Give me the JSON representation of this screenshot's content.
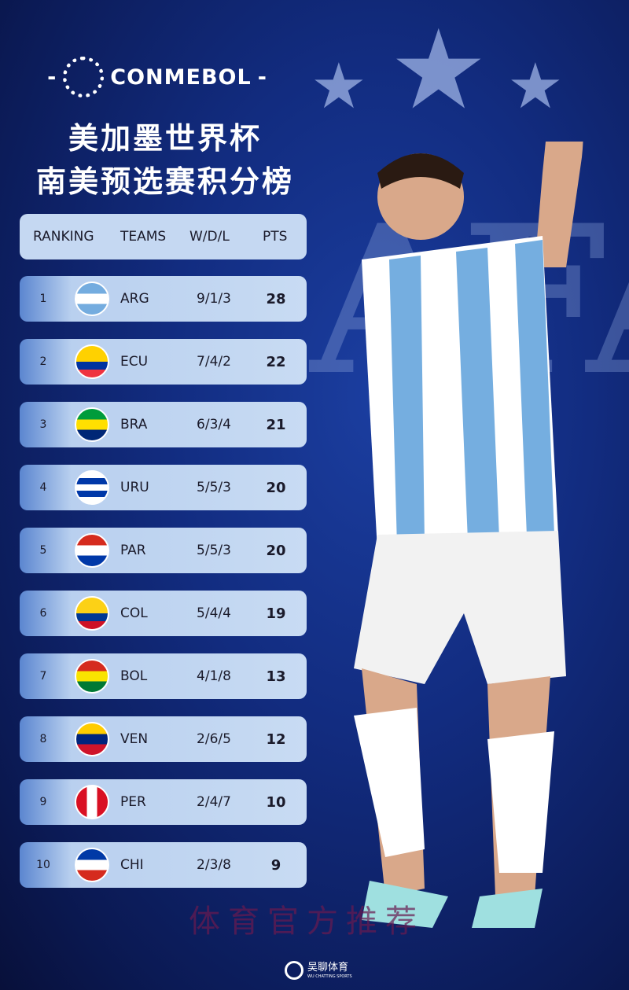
{
  "header": {
    "logo_text": "CONMEBOL",
    "title_line1": "美加墨世界杯",
    "title_line2": "南美预选赛积分榜"
  },
  "table": {
    "columns": [
      "RANKING",
      "TEAMS",
      "W/D/L",
      "PTS"
    ],
    "rows": [
      {
        "rank": "1",
        "team": "ARG",
        "wdl": "9/1/3",
        "pts": "28",
        "flag": [
          "#74acdf",
          "#ffffff",
          "#74acdf"
        ]
      },
      {
        "rank": "2",
        "team": "ECU",
        "wdl": "7/4/2",
        "pts": "22",
        "flag": [
          "#ffd100",
          "#ffd100",
          "#0033a0",
          "#ef3340"
        ]
      },
      {
        "rank": "3",
        "team": "BRA",
        "wdl": "6/3/4",
        "pts": "21",
        "flag": [
          "#009c3b",
          "#ffdf00",
          "#002776"
        ]
      },
      {
        "rank": "4",
        "team": "URU",
        "wdl": "5/5/3",
        "pts": "20",
        "flag": [
          "#ffffff",
          "#0038a8",
          "#ffffff",
          "#0038a8",
          "#ffffff"
        ]
      },
      {
        "rank": "5",
        "team": "PAR",
        "wdl": "5/5/3",
        "pts": "20",
        "flag": [
          "#d52b1e",
          "#ffffff",
          "#0038a8"
        ]
      },
      {
        "rank": "6",
        "team": "COL",
        "wdl": "5/4/4",
        "pts": "19",
        "flag": [
          "#fcd116",
          "#fcd116",
          "#003893",
          "#ce1126"
        ]
      },
      {
        "rank": "7",
        "team": "BOL",
        "wdl": "4/1/8",
        "pts": "13",
        "flag": [
          "#d52b1e",
          "#f9e300",
          "#007934"
        ]
      },
      {
        "rank": "8",
        "team": "VEN",
        "wdl": "2/6/5",
        "pts": "12",
        "flag": [
          "#ffcc00",
          "#00247d",
          "#cf142b"
        ]
      },
      {
        "rank": "9",
        "team": "PER",
        "wdl": "2/4/7",
        "pts": "10",
        "flag": [
          "#d91023",
          "#ffffff",
          "#d91023"
        ],
        "vertical": true
      },
      {
        "rank": "10",
        "team": "CHI",
        "wdl": "2/3/8",
        "pts": "9",
        "flag": [
          "#0039a6",
          "#ffffff",
          "#d52b1e"
        ]
      }
    ]
  },
  "watermark": "体育官方推荐",
  "brand": {
    "name": "吴聊体育",
    "sub": "WU CHATTING SPORTS"
  }
}
